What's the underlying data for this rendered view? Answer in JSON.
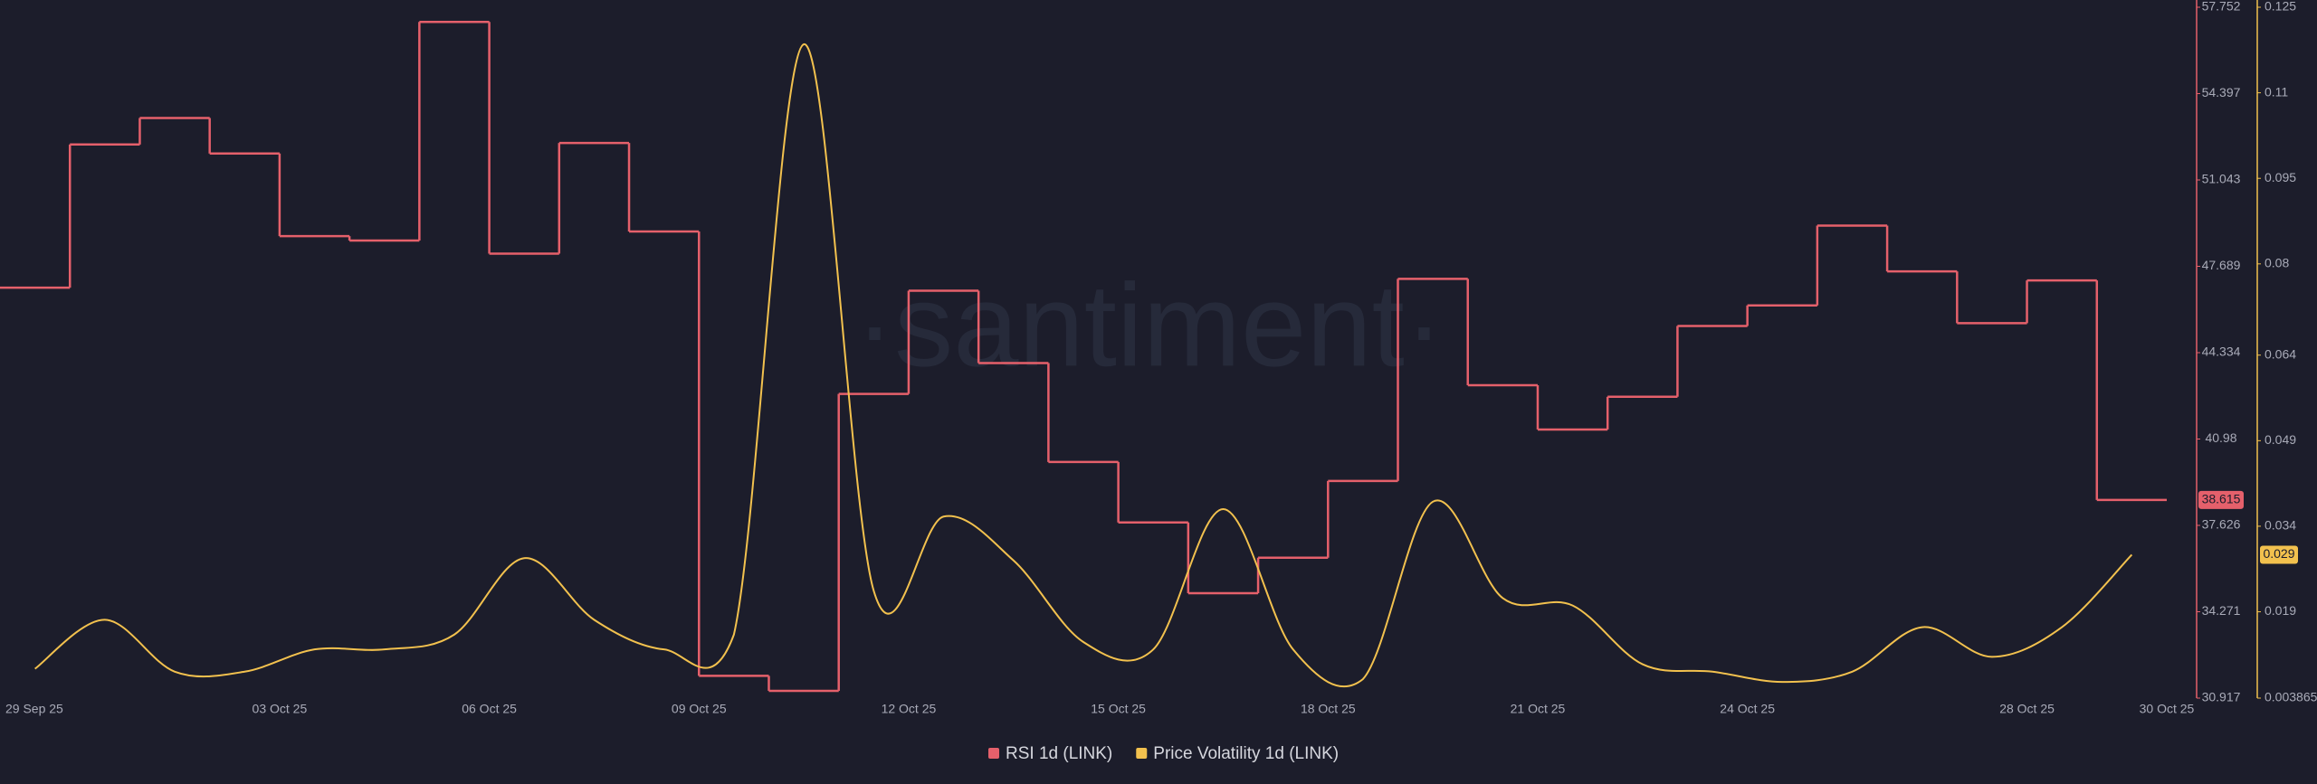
{
  "chart_data": {
    "type": "line",
    "watermark": "·santiment·",
    "x": [
      "29 Sep 25",
      "30 Sep 25",
      "01 Oct 25",
      "02 Oct 25",
      "03 Oct 25",
      "04 Oct 25",
      "05 Oct 25",
      "06 Oct 25",
      "07 Oct 25",
      "08 Oct 25",
      "09 Oct 25",
      "10 Oct 25",
      "11 Oct 25",
      "12 Oct 25",
      "13 Oct 25",
      "14 Oct 25",
      "15 Oct 25",
      "16 Oct 25",
      "17 Oct 25",
      "18 Oct 25",
      "19 Oct 25",
      "20 Oct 25",
      "21 Oct 25",
      "22 Oct 25",
      "23 Oct 25",
      "24 Oct 25",
      "25 Oct 25",
      "26 Oct 25",
      "27 Oct 25",
      "28 Oct 25",
      "29 Oct 25"
    ],
    "xticks": [
      "29 Sep 25",
      "03 Oct 25",
      "06 Oct 25",
      "09 Oct 25",
      "12 Oct 25",
      "15 Oct 25",
      "18 Oct 25",
      "21 Oct 25",
      "24 Oct 25",
      "28 Oct 25",
      "30 Oct 25"
    ],
    "series": [
      {
        "name": "RSI 1d (LINK)",
        "color": "#e5606b",
        "step": true,
        "values": [
          46.86,
          52.42,
          53.45,
          52.07,
          48.86,
          48.69,
          57.18,
          48.18,
          52.48,
          49.04,
          31.78,
          31.2,
          42.73,
          46.74,
          43.93,
          40.09,
          37.74,
          34.99,
          36.37,
          39.35,
          47.2,
          43.07,
          41.35,
          42.62,
          45.37,
          46.17,
          49.27,
          47.49,
          45.48,
          47.14,
          38.615
        ]
      },
      {
        "name": "Price Volatility 1d (LINK)",
        "color": "#f2c14e",
        "axis": "y2",
        "values": [
          0.009,
          0.0176,
          0.0085,
          0.0085,
          0.0124,
          0.0124,
          0.015,
          0.0284,
          0.0176,
          0.0124,
          0.015,
          0.1185,
          0.0227,
          0.0357,
          0.028,
          0.0137,
          0.0124,
          0.037,
          0.0124,
          0.0072,
          0.0383,
          0.0214,
          0.0201,
          0.0098,
          0.0085,
          0.0067,
          0.0085,
          0.0163,
          0.0111,
          0.0163,
          0.029
        ]
      }
    ],
    "ylim": [
      30.917,
      57.752
    ],
    "yticks": [
      30.917,
      34.271,
      37.626,
      40.98,
      44.334,
      47.689,
      51.043,
      54.397,
      57.752
    ],
    "y2lim": [
      0.003865,
      0.125
    ],
    "y2ticks": [
      0.003865,
      0.019,
      0.034,
      0.049,
      0.064,
      0.08,
      0.095,
      0.11,
      0.125
    ],
    "legend": "bottom"
  }
}
